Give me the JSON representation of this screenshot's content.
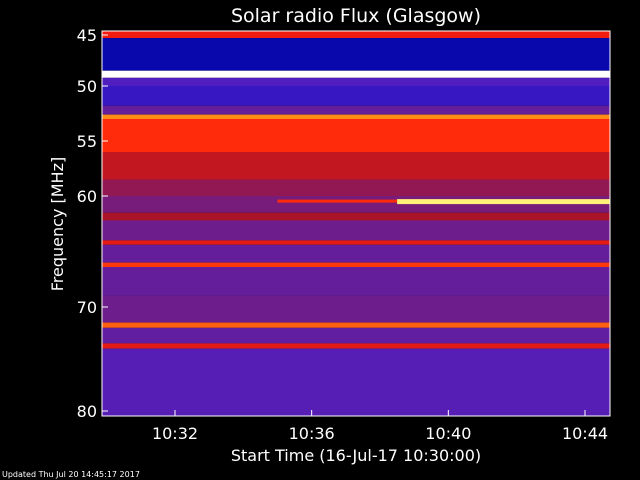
{
  "chart_data": {
    "type": "heatmap",
    "title": "Solar radio Flux (Glasgow)",
    "xlabel": "Start Time (16-Jul-17 10:30:00)",
    "ylabel": "Frequency [MHz]",
    "x_unit": "minutes after 10:30:00",
    "xlim": [
      0,
      15.3
    ],
    "ylim": [
      45,
      80
    ],
    "y_ticks": [
      45,
      50,
      55,
      60,
      70,
      80
    ],
    "x_ticks": [
      {
        "value": 2,
        "label": "10:32"
      },
      {
        "value": 6,
        "label": "10:36"
      },
      {
        "value": 10,
        "label": "10:40"
      },
      {
        "value": 14,
        "label": "10:44"
      }
    ],
    "bands": [
      {
        "from": 45.0,
        "to": 45.3,
        "intensity": 0.65,
        "full_width": true
      },
      {
        "from": 45.3,
        "to": 48.5,
        "intensity": 0.1
      },
      {
        "from": 48.5,
        "to": 49.2,
        "intensity": 1.0
      },
      {
        "from": 49.2,
        "to": 50.0,
        "intensity": 0.28
      },
      {
        "from": 50.0,
        "to": 51.8,
        "intensity": 0.22
      },
      {
        "from": 51.8,
        "to": 52.6,
        "intensity": 0.35
      },
      {
        "from": 52.6,
        "to": 53.0,
        "intensity": 0.85
      },
      {
        "from": 53.0,
        "to": 56.0,
        "intensity": 0.7
      },
      {
        "from": 56.0,
        "to": 58.5,
        "intensity": 0.55
      },
      {
        "from": 58.5,
        "to": 60.0,
        "intensity": 0.45
      },
      {
        "from": 60.0,
        "to": 61.5,
        "intensity": 0.4
      },
      {
        "from": 61.5,
        "to": 62.2,
        "intensity": 0.5
      },
      {
        "from": 62.2,
        "to": 64.0,
        "intensity": 0.38
      },
      {
        "from": 64.0,
        "to": 64.4,
        "intensity": 0.62
      },
      {
        "from": 64.4,
        "to": 66.0,
        "intensity": 0.35
      },
      {
        "from": 66.0,
        "to": 66.4,
        "intensity": 0.72
      },
      {
        "from": 66.4,
        "to": 69.0,
        "intensity": 0.35
      },
      {
        "from": 69.0,
        "to": 71.5,
        "intensity": 0.38
      },
      {
        "from": 71.5,
        "to": 72.0,
        "intensity": 0.78
      },
      {
        "from": 72.0,
        "to": 73.5,
        "intensity": 0.34
      },
      {
        "from": 73.5,
        "to": 74.0,
        "intensity": 0.62
      },
      {
        "from": 74.0,
        "to": 80.0,
        "intensity": 0.3
      }
    ],
    "burst": {
      "frequency": 60.5,
      "t_start": 8.5,
      "t_end": 15.3,
      "intensity": 0.95,
      "faint_t_start": 5.0
    }
  },
  "footer": "Updated Thu Jul 20 14:45:17 2017"
}
